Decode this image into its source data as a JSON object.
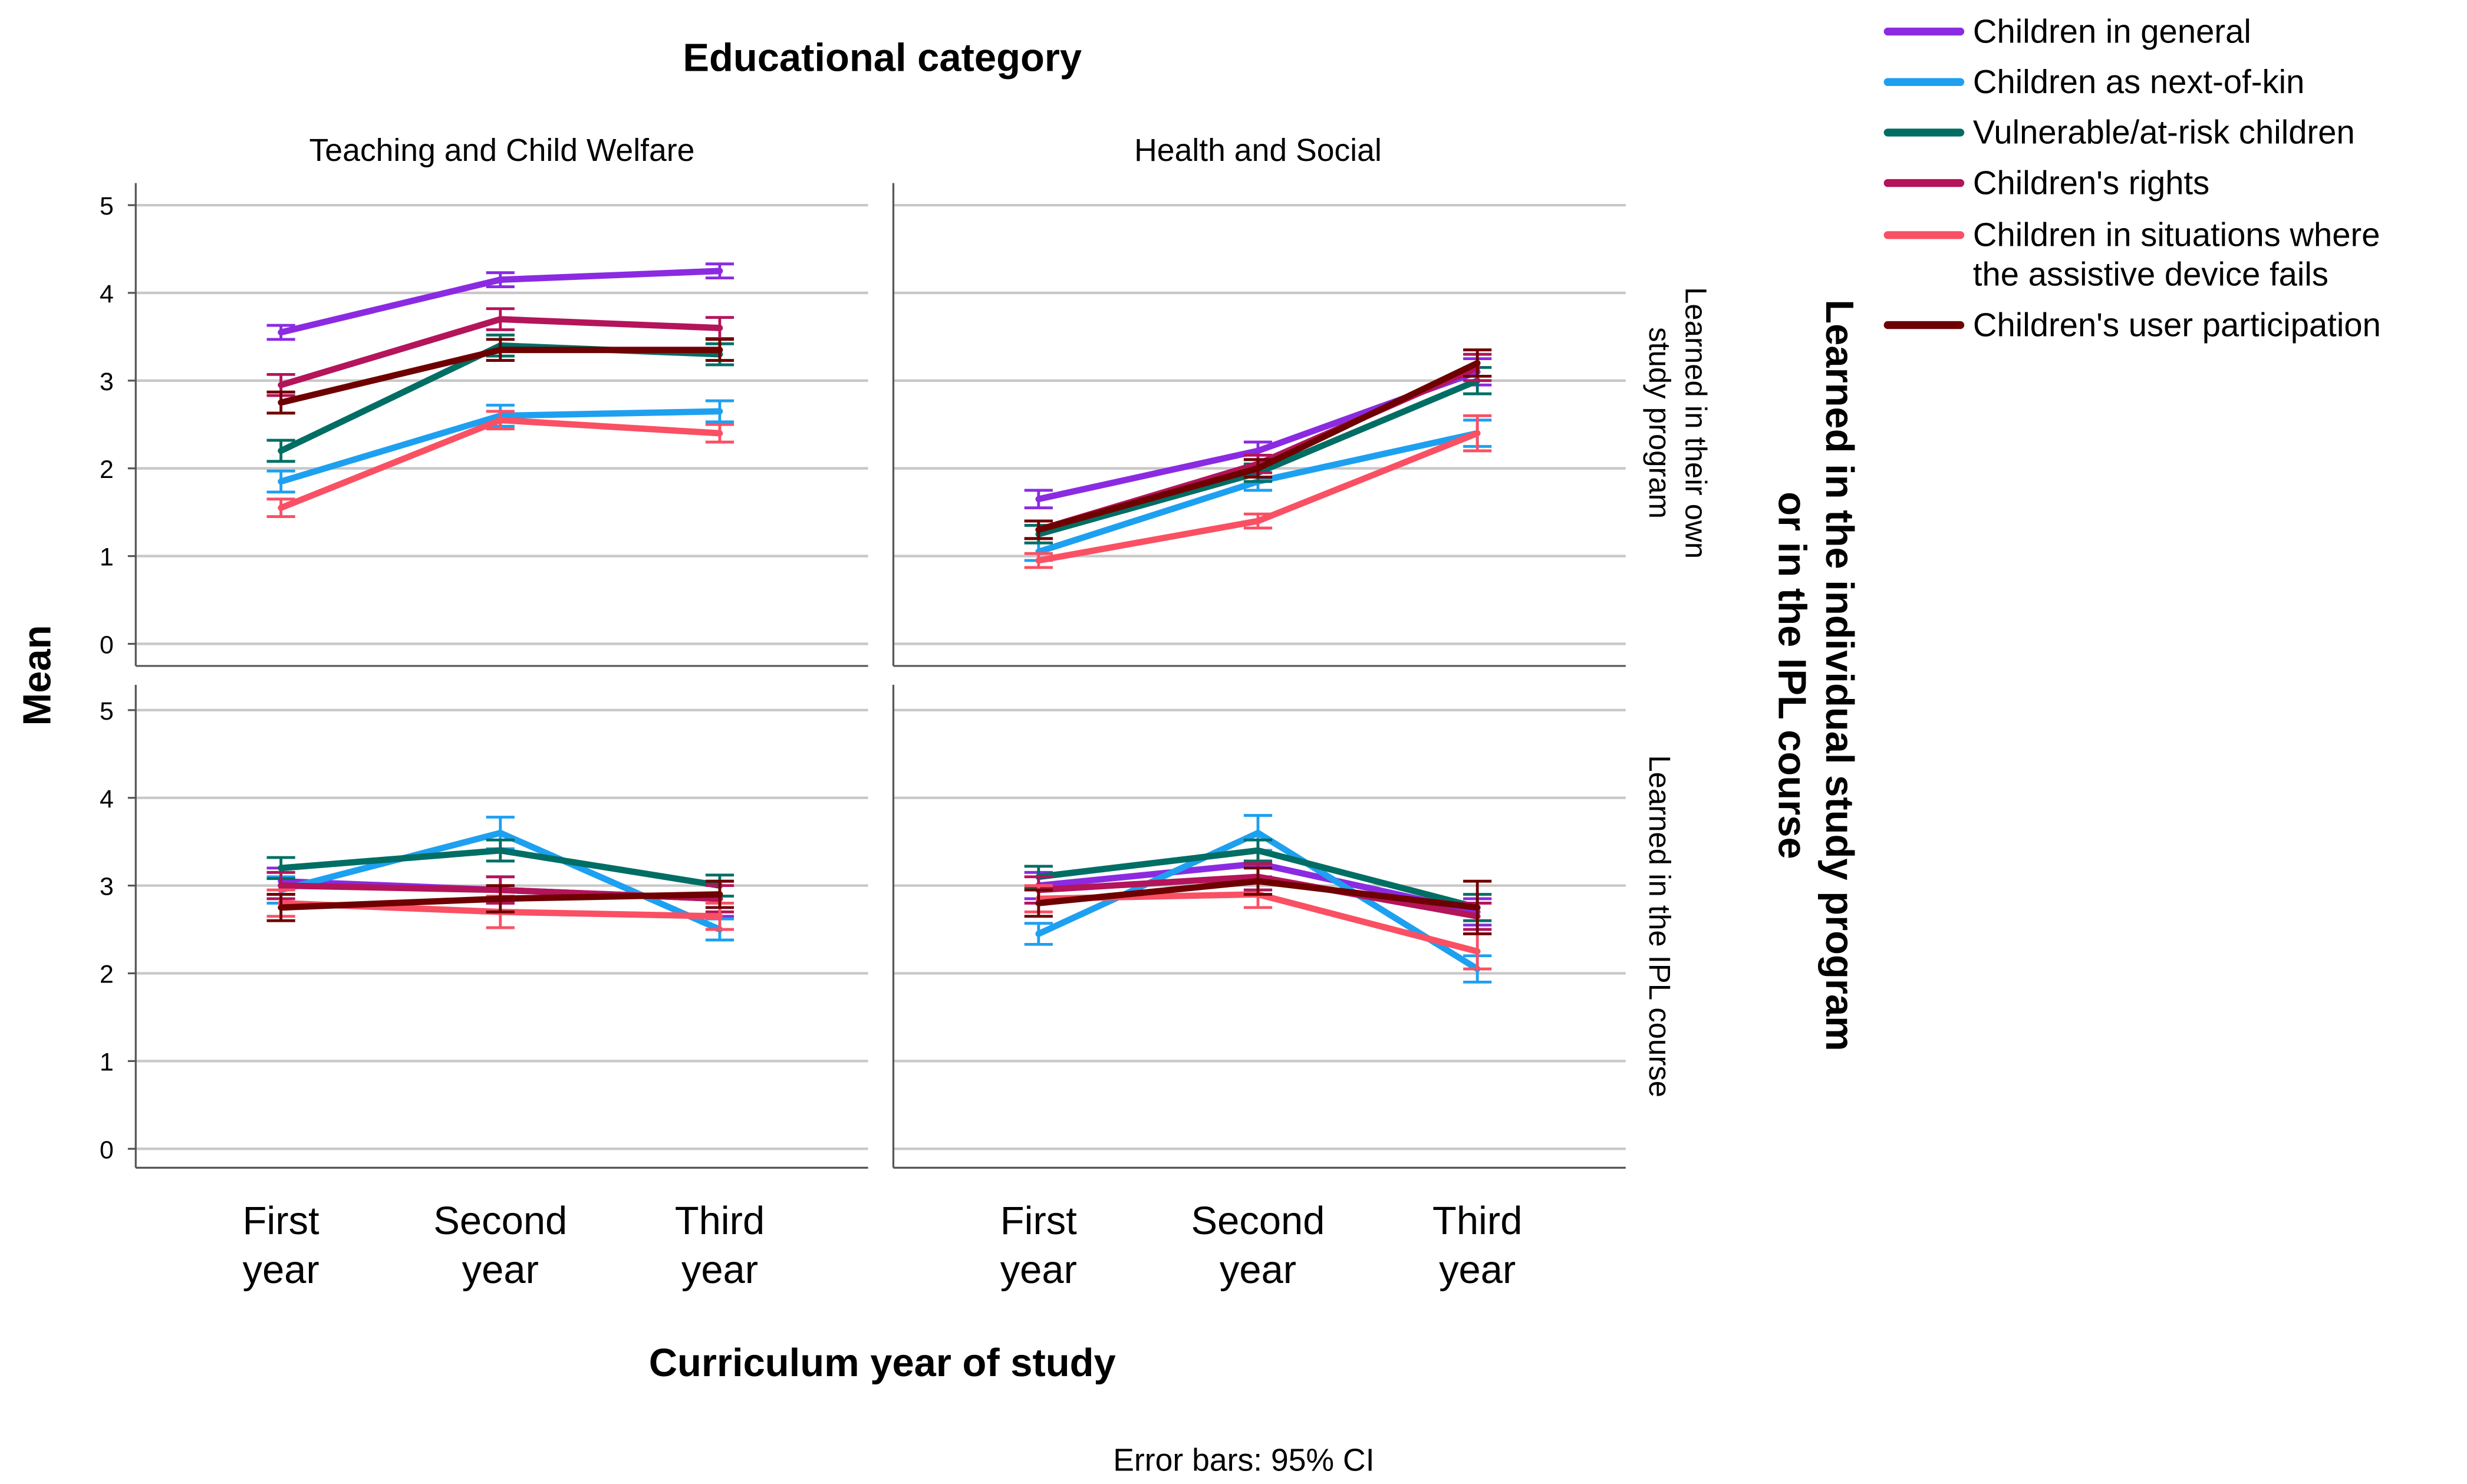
{
  "chart_data": {
    "type": "line",
    "title": "Educational category",
    "xlabel": "Curriculum year of study",
    "ylabel": "Mean",
    "row_axis_title": "Learned in the individual study program or in the IPL course",
    "footnote": "Error bars: 95% CI",
    "columns": [
      "Teaching and Child Welfare",
      "Health and Social"
    ],
    "rows": [
      "Learned in their own study program",
      "Learned in the IPL course"
    ],
    "categories": [
      [
        "First",
        "year"
      ],
      [
        "Second",
        "year"
      ],
      [
        "Third",
        "year"
      ]
    ],
    "ylim": [
      -0.3,
      5.3
    ],
    "yticks": [
      "0",
      "1",
      "2",
      "3",
      "4",
      "5"
    ],
    "legend": [
      {
        "name": "Children in general",
        "color": "#8a2be2"
      },
      {
        "name": "Children as next-of-kin",
        "color": "#1ea0f0"
      },
      {
        "name": "Vulnerable/at-risk children",
        "color": "#006e64"
      },
      {
        "name": "Children's rights",
        "color": "#b4145a"
      },
      {
        "name": "Children in situations where the assistive device fails",
        "color": "#fa5064"
      },
      {
        "name": "Children's user participation",
        "color": "#6e0000"
      }
    ],
    "panels": [
      {
        "col": 0,
        "row": 0,
        "series": [
          {
            "name": "Children in general",
            "values": [
              3.55,
              4.15,
              4.25
            ],
            "ci": [
              0.08,
              0.08,
              0.08
            ]
          },
          {
            "name": "Children as next-of-kin",
            "values": [
              1.85,
              2.6,
              2.65
            ],
            "ci": [
              0.12,
              0.12,
              0.12
            ]
          },
          {
            "name": "Vulnerable/at-risk children",
            "values": [
              2.2,
              3.4,
              3.3
            ],
            "ci": [
              0.12,
              0.12,
              0.12
            ]
          },
          {
            "name": "Children's rights",
            "values": [
              2.95,
              3.7,
              3.6
            ],
            "ci": [
              0.12,
              0.12,
              0.12
            ]
          },
          {
            "name": "Children in situations where the assistive device fails",
            "values": [
              1.55,
              2.55,
              2.4
            ],
            "ci": [
              0.1,
              0.1,
              0.1
            ]
          },
          {
            "name": "Children's user participation",
            "values": [
              2.75,
              3.35,
              3.35
            ],
            "ci": [
              0.12,
              0.12,
              0.12
            ]
          }
        ]
      },
      {
        "col": 1,
        "row": 0,
        "series": [
          {
            "name": "Children in general",
            "values": [
              1.65,
              2.2,
              3.1
            ],
            "ci": [
              0.1,
              0.1,
              0.15
            ]
          },
          {
            "name": "Children as next-of-kin",
            "values": [
              1.05,
              1.85,
              2.4
            ],
            "ci": [
              0.1,
              0.1,
              0.15
            ]
          },
          {
            "name": "Vulnerable/at-risk children",
            "values": [
              1.25,
              1.95,
              3.0
            ],
            "ci": [
              0.1,
              0.1,
              0.15
            ]
          },
          {
            "name": "Children's rights",
            "values": [
              1.3,
              2.05,
              3.15
            ],
            "ci": [
              0.1,
              0.1,
              0.15
            ]
          },
          {
            "name": "Children in situations where the assistive device fails",
            "values": [
              0.95,
              1.4,
              2.4
            ],
            "ci": [
              0.08,
              0.08,
              0.2
            ]
          },
          {
            "name": "Children's user participation",
            "values": [
              1.3,
              2.0,
              3.2
            ],
            "ci": [
              0.1,
              0.1,
              0.15
            ]
          }
        ]
      },
      {
        "col": 0,
        "row": 1,
        "series": [
          {
            "name": "Children in general",
            "values": [
              3.05,
              2.95,
              2.85
            ],
            "ci": [
              0.15,
              0.15,
              0.2
            ]
          },
          {
            "name": "Children as next-of-kin",
            "values": [
              2.95,
              3.6,
              2.5
            ],
            "ci": [
              0.15,
              0.18,
              0.12
            ]
          },
          {
            "name": "Vulnerable/at-risk children",
            "values": [
              3.2,
              3.4,
              3.0
            ],
            "ci": [
              0.12,
              0.12,
              0.12
            ]
          },
          {
            "name": "Children's rights",
            "values": [
              3.0,
              2.95,
              2.85
            ],
            "ci": [
              0.15,
              0.15,
              0.15
            ]
          },
          {
            "name": "Children in situations where the assistive device fails",
            "values": [
              2.8,
              2.7,
              2.65
            ],
            "ci": [
              0.15,
              0.18,
              0.15
            ]
          },
          {
            "name": "Children's user participation",
            "values": [
              2.75,
              2.85,
              2.9
            ],
            "ci": [
              0.15,
              0.15,
              0.15
            ]
          }
        ]
      },
      {
        "col": 1,
        "row": 1,
        "series": [
          {
            "name": "Children in general",
            "values": [
              3.0,
              3.25,
              2.7
            ],
            "ci": [
              0.15,
              0.15,
              0.15
            ]
          },
          {
            "name": "Children as next-of-kin",
            "values": [
              2.45,
              3.6,
              2.05
            ],
            "ci": [
              0.12,
              0.2,
              0.15
            ]
          },
          {
            "name": "Vulnerable/at-risk children",
            "values": [
              3.1,
              3.4,
              2.75
            ],
            "ci": [
              0.12,
              0.12,
              0.15
            ]
          },
          {
            "name": "Children's rights",
            "values": [
              2.95,
              3.1,
              2.65
            ],
            "ci": [
              0.15,
              0.15,
              0.15
            ]
          },
          {
            "name": "Children in situations where the assistive device fails",
            "values": [
              2.85,
              2.9,
              2.25
            ],
            "ci": [
              0.15,
              0.15,
              0.2
            ]
          },
          {
            "name": "Children's user participation",
            "values": [
              2.8,
              3.05,
              2.75
            ],
            "ci": [
              0.15,
              0.15,
              0.3
            ]
          }
        ]
      }
    ]
  }
}
